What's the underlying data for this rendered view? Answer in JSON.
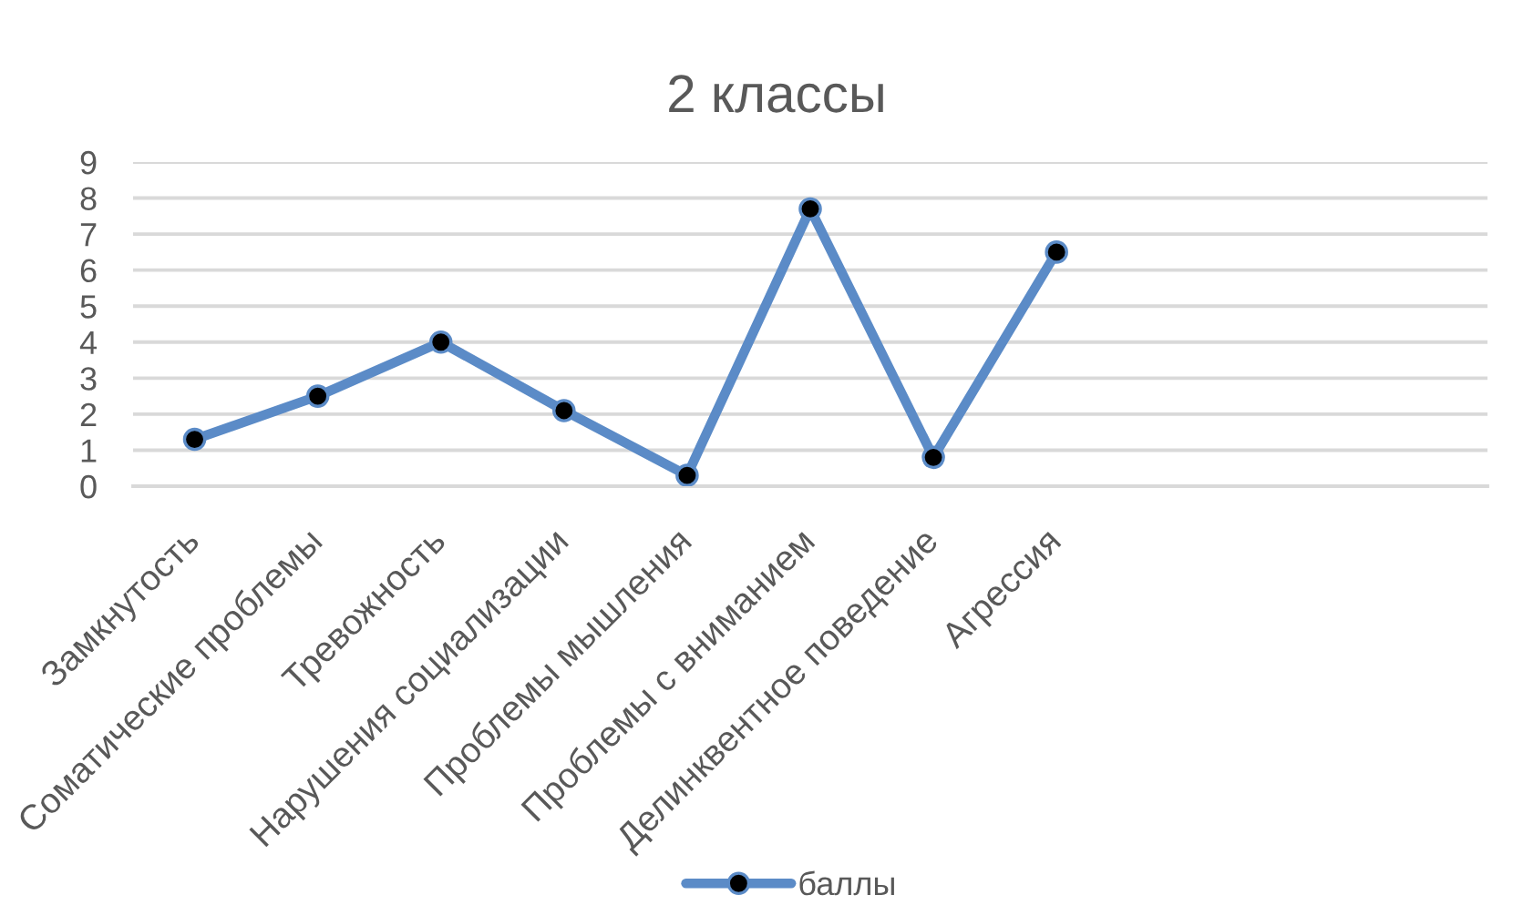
{
  "chart_data": {
    "type": "line",
    "title": "2 классы",
    "categories": [
      "Замкнутость",
      "Соматические проблемы",
      "Тревожность",
      "Нарушения социализации",
      "Проблемы мышления",
      "Проблемы с вниманием",
      "Делинквентное поведение",
      "Агрессия",
      null,
      null,
      null
    ],
    "series": [
      {
        "name": "баллы",
        "color": "#5b8bc7",
        "values": [
          1.3,
          2.5,
          4.0,
          2.1,
          0.3,
          7.7,
          0.8,
          6.5,
          null,
          null,
          null
        ]
      }
    ],
    "ylim": [
      0,
      9
    ],
    "yticks": [
      0,
      1,
      2,
      3,
      4,
      5,
      6,
      7,
      8,
      9
    ],
    "grid": "y",
    "legend": "bottom",
    "marker": "circle",
    "line_style": "solid"
  }
}
